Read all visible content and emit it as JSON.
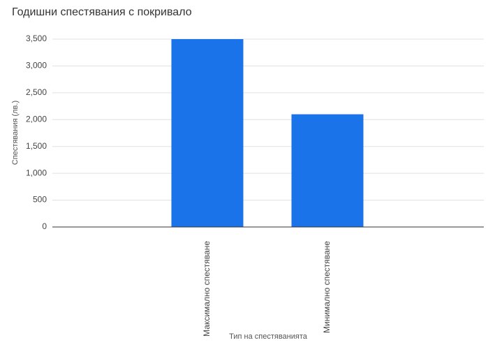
{
  "chart_data": {
    "type": "bar",
    "title": "Годишни спестявания с покривало",
    "x_label": "Тип на спестяванията",
    "y_label": "Спестявания (лв.)",
    "categories": [
      "Максимално спестяване",
      "Минимално спестяване"
    ],
    "values": [
      3500,
      2100
    ],
    "color": "#1a73e8",
    "ylim": [
      0,
      3500
    ],
    "yticks": [
      0,
      500,
      {
        "value": 1000,
        "label": "1,000"
      },
      {
        "value": 1500,
        "label": "1,500"
      },
      {
        "value": 2000,
        "label": "2,000"
      },
      {
        "value": 2500,
        "label": "2,500"
      },
      {
        "value": 3000,
        "label": "3,000"
      },
      {
        "value": 3500,
        "label": "3,500"
      }
    ],
    "grid": true
  }
}
